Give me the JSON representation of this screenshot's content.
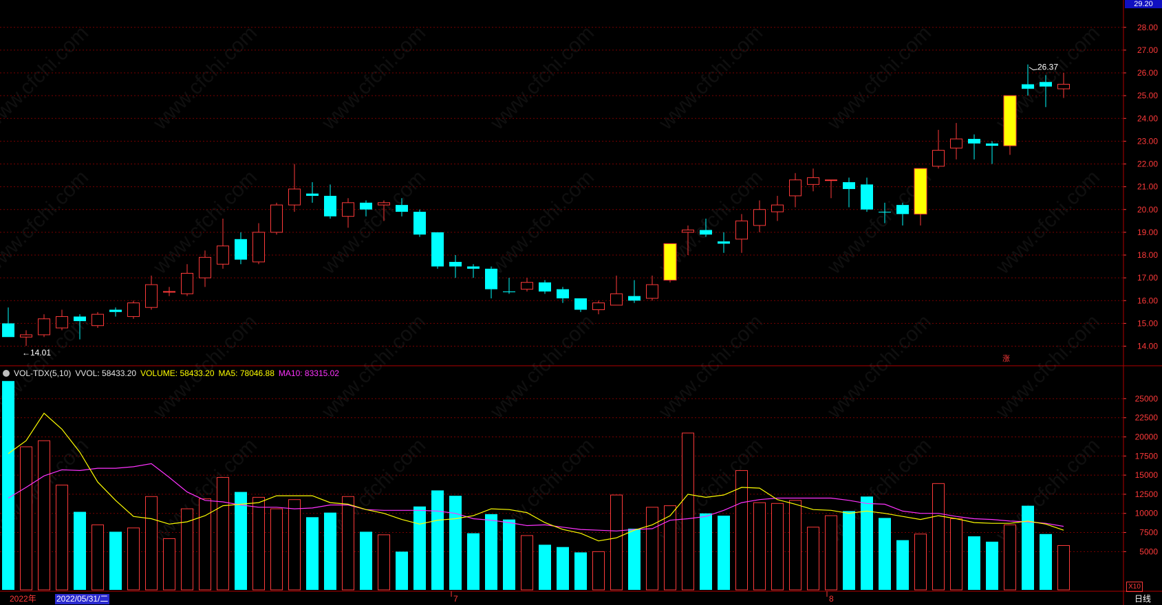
{
  "chart_data": {
    "type": "candlestick",
    "price_axis": {
      "ticks": [
        "14.00",
        "15.00",
        "16.00",
        "17.00",
        "18.00",
        "19.00",
        "20.00",
        "21.00",
        "22.00",
        "23.00",
        "24.00",
        "25.00",
        "26.00",
        "27.00",
        "28.00"
      ],
      "range": [
        13.2,
        29.2
      ],
      "top_value": "29.20"
    },
    "candles": [
      {
        "o": 15.0,
        "h": 15.7,
        "l": 14.4,
        "c": 14.4,
        "up": false
      },
      {
        "o": 14.4,
        "h": 14.7,
        "l": 14.01,
        "c": 14.5,
        "up": true
      },
      {
        "o": 14.5,
        "h": 15.4,
        "l": 14.4,
        "c": 15.2,
        "up": true
      },
      {
        "o": 14.8,
        "h": 15.6,
        "l": 14.7,
        "c": 15.3,
        "up": true
      },
      {
        "o": 15.3,
        "h": 15.4,
        "l": 14.3,
        "c": 15.1,
        "up": false
      },
      {
        "o": 14.9,
        "h": 15.5,
        "l": 14.8,
        "c": 15.4,
        "up": true
      },
      {
        "o": 15.6,
        "h": 15.7,
        "l": 15.3,
        "c": 15.5,
        "up": false
      },
      {
        "o": 15.3,
        "h": 16.0,
        "l": 15.2,
        "c": 15.9,
        "up": true
      },
      {
        "o": 15.7,
        "h": 17.1,
        "l": 15.6,
        "c": 16.7,
        "up": true
      },
      {
        "o": 16.4,
        "h": 16.6,
        "l": 16.2,
        "c": 16.4,
        "up": true
      },
      {
        "o": 16.3,
        "h": 17.6,
        "l": 16.2,
        "c": 17.2,
        "up": true
      },
      {
        "o": 17.0,
        "h": 18.2,
        "l": 16.6,
        "c": 17.9,
        "up": true
      },
      {
        "o": 17.6,
        "h": 19.6,
        "l": 17.4,
        "c": 18.4,
        "up": true
      },
      {
        "o": 18.7,
        "h": 19.0,
        "l": 17.6,
        "c": 17.8,
        "up": false
      },
      {
        "o": 17.7,
        "h": 19.4,
        "l": 17.6,
        "c": 19.0,
        "up": true
      },
      {
        "o": 19.0,
        "h": 20.3,
        "l": 18.9,
        "c": 20.2,
        "up": true
      },
      {
        "o": 20.2,
        "h": 22.0,
        "l": 19.9,
        "c": 20.9,
        "up": true
      },
      {
        "o": 20.7,
        "h": 21.2,
        "l": 20.3,
        "c": 20.6,
        "up": false
      },
      {
        "o": 20.6,
        "h": 21.1,
        "l": 19.6,
        "c": 19.7,
        "up": false
      },
      {
        "o": 19.7,
        "h": 20.5,
        "l": 19.2,
        "c": 20.3,
        "up": true
      },
      {
        "o": 20.3,
        "h": 20.4,
        "l": 19.7,
        "c": 20.0,
        "up": false
      },
      {
        "o": 20.2,
        "h": 20.4,
        "l": 19.5,
        "c": 20.3,
        "up": true
      },
      {
        "o": 20.2,
        "h": 20.5,
        "l": 19.7,
        "c": 19.9,
        "up": false
      },
      {
        "o": 19.9,
        "h": 20.0,
        "l": 18.8,
        "c": 18.9,
        "up": false
      },
      {
        "o": 19.0,
        "h": 19.0,
        "l": 17.4,
        "c": 17.5,
        "up": false
      },
      {
        "o": 17.7,
        "h": 18.0,
        "l": 17.0,
        "c": 17.5,
        "up": false
      },
      {
        "o": 17.5,
        "h": 17.6,
        "l": 17.0,
        "c": 17.4,
        "up": false
      },
      {
        "o": 17.4,
        "h": 17.5,
        "l": 16.1,
        "c": 16.5,
        "up": false
      },
      {
        "o": 16.4,
        "h": 17.0,
        "l": 16.3,
        "c": 16.4,
        "up": false
      },
      {
        "o": 16.5,
        "h": 17.0,
        "l": 16.4,
        "c": 16.8,
        "up": true
      },
      {
        "o": 16.8,
        "h": 16.9,
        "l": 16.3,
        "c": 16.4,
        "up": false
      },
      {
        "o": 16.5,
        "h": 16.6,
        "l": 15.9,
        "c": 16.1,
        "up": false
      },
      {
        "o": 16.1,
        "h": 16.1,
        "l": 15.5,
        "c": 15.6,
        "up": false
      },
      {
        "o": 15.6,
        "h": 16.0,
        "l": 15.4,
        "c": 15.9,
        "up": true
      },
      {
        "o": 15.8,
        "h": 17.1,
        "l": 15.8,
        "c": 16.3,
        "up": true
      },
      {
        "o": 16.2,
        "h": 16.9,
        "l": 15.9,
        "c": 16.0,
        "up": false
      },
      {
        "o": 16.1,
        "h": 17.1,
        "l": 16.0,
        "c": 16.7,
        "up": true
      },
      {
        "o": 16.9,
        "h": 18.5,
        "l": 16.8,
        "c": 18.5,
        "up": true,
        "limit": true
      },
      {
        "o": 19.0,
        "h": 19.3,
        "l": 18.0,
        "c": 19.1,
        "up": true
      },
      {
        "o": 19.1,
        "h": 19.6,
        "l": 18.8,
        "c": 18.9,
        "up": false
      },
      {
        "o": 18.6,
        "h": 19.0,
        "l": 18.1,
        "c": 18.5,
        "up": false
      },
      {
        "o": 18.7,
        "h": 19.8,
        "l": 18.1,
        "c": 19.5,
        "up": true
      },
      {
        "o": 19.3,
        "h": 20.4,
        "l": 19.0,
        "c": 20.0,
        "up": true
      },
      {
        "o": 19.9,
        "h": 20.6,
        "l": 19.5,
        "c": 20.2,
        "up": true
      },
      {
        "o": 20.6,
        "h": 21.6,
        "l": 20.1,
        "c": 21.3,
        "up": true
      },
      {
        "o": 21.1,
        "h": 21.8,
        "l": 20.8,
        "c": 21.4,
        "up": true
      },
      {
        "o": 21.3,
        "h": 21.3,
        "l": 20.5,
        "c": 21.3,
        "up": true
      },
      {
        "o": 21.2,
        "h": 21.4,
        "l": 20.1,
        "c": 20.9,
        "up": false
      },
      {
        "o": 21.1,
        "h": 21.4,
        "l": 19.9,
        "c": 20.0,
        "up": false
      },
      {
        "o": 19.9,
        "h": 20.3,
        "l": 19.4,
        "c": 19.9,
        "up": false
      },
      {
        "o": 20.2,
        "h": 20.3,
        "l": 19.3,
        "c": 19.8,
        "up": false
      },
      {
        "o": 19.8,
        "h": 21.8,
        "l": 19.3,
        "c": 21.8,
        "up": true,
        "limit": true
      },
      {
        "o": 21.9,
        "h": 23.5,
        "l": 21.8,
        "c": 22.6,
        "up": true
      },
      {
        "o": 22.7,
        "h": 23.8,
        "l": 22.2,
        "c": 23.1,
        "up": true
      },
      {
        "o": 23.1,
        "h": 23.3,
        "l": 22.2,
        "c": 22.9,
        "up": false
      },
      {
        "o": 22.9,
        "h": 23.0,
        "l": 22.0,
        "c": 22.8,
        "up": false
      },
      {
        "o": 22.8,
        "h": 25.0,
        "l": 22.4,
        "c": 25.0,
        "up": true,
        "limit": true
      },
      {
        "o": 25.5,
        "h": 26.37,
        "l": 25.0,
        "c": 25.3,
        "up": false
      },
      {
        "o": 25.6,
        "h": 25.9,
        "l": 24.5,
        "c": 25.4,
        "up": false
      },
      {
        "o": 25.3,
        "h": 26.0,
        "l": 24.9,
        "c": 25.5,
        "up": true
      }
    ],
    "annotations": {
      "low": "←14.01",
      "high": "26.37"
    },
    "volume_axis": {
      "ticks": [
        "5000",
        "7500",
        "10000",
        "12500",
        "15000",
        "17500",
        "20000",
        "22500",
        "25000"
      ],
      "range": [
        0,
        27500
      ],
      "unit_badge": "X10"
    },
    "volumes": [
      27300,
      18700,
      19500,
      13700,
      10200,
      8500,
      7600,
      8100,
      12200,
      6700,
      10600,
      11900,
      14700,
      12800,
      12100,
      10600,
      11800,
      9500,
      10100,
      12200,
      7600,
      7200,
      5000,
      10900,
      13000,
      12300,
      7400,
      9900,
      9200,
      7100,
      5900,
      5600,
      4900,
      5000,
      12400,
      8000,
      10800,
      11000,
      20500,
      10000,
      9700,
      15600,
      11400,
      11300,
      11700,
      8200,
      9700,
      10300,
      12200,
      9400,
      6500,
      7300,
      13900,
      9300,
      7000,
      6300,
      8500,
      11000,
      7300,
      5800
    ],
    "ma5": [
      17800,
      19500,
      23100,
      21000,
      18000,
      14100,
      11700,
      9600,
      9300,
      8600,
      8900,
      9700,
      11000,
      11200,
      11400,
      12300,
      12300,
      12300,
      11400,
      11200,
      10500,
      10000,
      9200,
      8600,
      9100,
      9300,
      9700,
      10600,
      10500,
      10100,
      8800,
      7900,
      7400,
      6400,
      6800,
      7800,
      8500,
      9700,
      12500,
      12100,
      12400,
      13400,
      13300,
      11800,
      11200,
      10500,
      10400,
      10000,
      10300,
      10000,
      9600,
      9200,
      9700,
      9300,
      8800,
      8700,
      8700,
      9000,
      8600,
      7800
    ],
    "ma10": [
      12000,
      13400,
      14900,
      15700,
      15600,
      15900,
      15900,
      16100,
      16500,
      14700,
      12800,
      11700,
      11500,
      11100,
      10800,
      10800,
      10600,
      10700,
      11100,
      11100,
      10500,
      10400,
      10400,
      10400,
      10300,
      10000,
      9300,
      9100,
      8800,
      8400,
      8500,
      8200,
      7900,
      7800,
      7700,
      7900,
      8000,
      9100,
      9300,
      9600,
      10400,
      11400,
      11800,
      12000,
      12000,
      12000,
      12000,
      11700,
      11300,
      11200,
      10300,
      10000,
      10000,
      9600,
      9300,
      9200,
      9000,
      8900,
      8700,
      8300
    ]
  },
  "volume_legend": {
    "indicator": "VOL-TDX(5,10)",
    "vvol": "VVOL: 58433.20",
    "volume": "VOLUME: 58433.20",
    "ma5": "MA5: 78046.88",
    "ma10": "MA10: 83315.02"
  },
  "bottom_axis": {
    "year": "2022年",
    "selected_date": "2022/05/31/二",
    "month_7": "7",
    "month_8": "8",
    "period": "日线"
  },
  "markers": {
    "zhang": "涨"
  },
  "watermark": "www.cfchi.com",
  "colors": {
    "up": "#ff3a3a",
    "down": "#00ffff",
    "limit": "#ffff00",
    "ma5": "#ffff00",
    "ma10": "#ff33ff",
    "grid": "#7a0000"
  }
}
